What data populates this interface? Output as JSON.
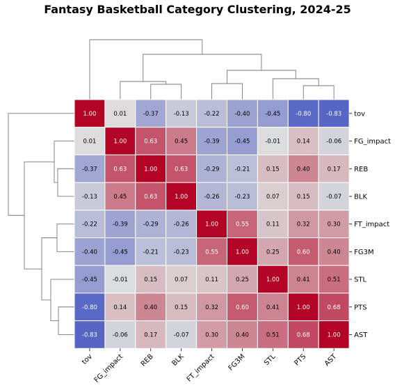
{
  "chart_data": {
    "type": "heatmap",
    "title": "Fantasy Basketball Category Clustering, 2024-25",
    "labels": [
      "tov",
      "FG_impact",
      "REB",
      "BLK",
      "FT_impact",
      "FG3M",
      "STL",
      "PTS",
      "AST"
    ],
    "matrix": [
      [
        1.0,
        0.01,
        -0.37,
        -0.13,
        -0.22,
        -0.4,
        -0.45,
        -0.8,
        -0.83
      ],
      [
        0.01,
        1.0,
        0.63,
        0.45,
        -0.39,
        -0.45,
        -0.01,
        0.14,
        -0.06
      ],
      [
        -0.37,
        0.63,
        1.0,
        0.63,
        -0.29,
        -0.21,
        0.15,
        0.4,
        0.17
      ],
      [
        -0.13,
        0.45,
        0.63,
        1.0,
        -0.26,
        -0.23,
        0.07,
        0.15,
        -0.07
      ],
      [
        -0.22,
        -0.39,
        -0.29,
        -0.26,
        1.0,
        0.55,
        0.11,
        0.32,
        0.3
      ],
      [
        -0.4,
        -0.45,
        -0.21,
        -0.23,
        0.55,
        1.0,
        0.25,
        0.6,
        0.4
      ],
      [
        -0.45,
        -0.01,
        0.15,
        0.07,
        0.11,
        0.25,
        1.0,
        0.41,
        0.51
      ],
      [
        -0.8,
        0.14,
        0.4,
        0.15,
        0.32,
        0.6,
        0.41,
        1.0,
        0.68
      ],
      [
        -0.83,
        -0.06,
        0.17,
        -0.07,
        0.3,
        0.4,
        0.51,
        0.68,
        1.0
      ]
    ],
    "value_range": [
      -1,
      1
    ],
    "colormap": "coolwarm",
    "colors": {
      "low": "#3b4cc0",
      "mid": "#dddddd",
      "high": "#b40426",
      "cell_border": "#ffffff"
    },
    "dendrogram": {
      "merges": [
        [
          "FG_impact",
          "REB",
          "BLK"
        ],
        [
          "FT_impact",
          "FG3M"
        ],
        [
          "STL",
          "PTS",
          "AST"
        ],
        [
          "FT_impact",
          "FG3M",
          "STL",
          "PTS",
          "AST"
        ],
        [
          "FG_impact",
          "REB",
          "BLK",
          "FT_impact",
          "FG3M",
          "STL",
          "PTS",
          "AST"
        ],
        [
          "tov",
          "FG_impact",
          "REB",
          "BLK",
          "FT_impact",
          "FG3M",
          "STL",
          "PTS",
          "AST"
        ]
      ]
    }
  }
}
